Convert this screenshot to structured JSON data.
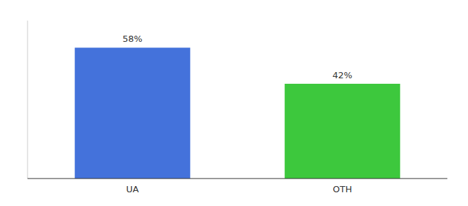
{
  "chart_data": {
    "type": "bar",
    "categories": [
      "UA",
      "OTH"
    ],
    "values": [
      58,
      42
    ],
    "value_labels": [
      "58%",
      "42%"
    ],
    "colors": [
      "#4472db",
      "#3dc83d"
    ],
    "ylim": [
      0,
      70
    ],
    "yticks": [],
    "tick_labels": "x",
    "data_labels": true,
    "grid": false
  }
}
